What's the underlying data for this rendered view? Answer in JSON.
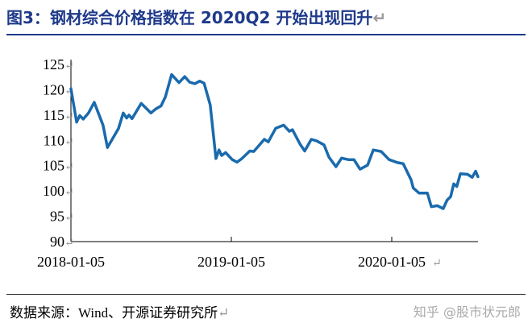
{
  "title": "图3：钢材综合价格指数在 2020Q2 开始出现回升",
  "return_mark": "↵",
  "source": "数据来源：Wind、开源证券研究所",
  "watermark": "知乎 @股市状元郎",
  "colors": {
    "line": "#1a6aad",
    "title": "#1f3a8a",
    "axis": "#000000"
  },
  "chart_data": {
    "type": "line",
    "title": "",
    "xlabel": "",
    "ylabel": "",
    "ylim": [
      90,
      125
    ],
    "yticks": [
      90,
      95,
      100,
      105,
      110,
      115,
      120,
      125
    ],
    "xticks": [
      "2018-01-05",
      "2019-01-05",
      "2020-01-05"
    ],
    "xlim": [
      "2018-01-05",
      "2020-07-19"
    ],
    "grid": false,
    "legend": "none",
    "series": [
      {
        "points": [
          [
            "2018-01-05",
            120.2
          ],
          [
            "2018-01-18",
            113.6
          ],
          [
            "2018-01-25",
            114.9
          ],
          [
            "2018-02-02",
            114.2
          ],
          [
            "2018-02-14",
            115.4
          ],
          [
            "2018-02-27",
            117.5
          ],
          [
            "2018-03-19",
            113.0
          ],
          [
            "2018-03-29",
            108.6
          ],
          [
            "2018-04-23",
            112.3
          ],
          [
            "2018-05-04",
            115.4
          ],
          [
            "2018-05-12",
            114.4
          ],
          [
            "2018-05-17",
            115.0
          ],
          [
            "2018-05-24",
            114.3
          ],
          [
            "2018-06-14",
            117.3
          ],
          [
            "2018-07-06",
            115.4
          ],
          [
            "2018-07-17",
            116.2
          ],
          [
            "2018-07-29",
            116.8
          ],
          [
            "2018-08-08",
            118.6
          ],
          [
            "2018-08-22",
            123.0
          ],
          [
            "2018-09-08",
            121.4
          ],
          [
            "2018-09-21",
            122.6
          ],
          [
            "2018-10-02",
            121.5
          ],
          [
            "2018-10-14",
            121.2
          ],
          [
            "2018-10-25",
            121.7
          ],
          [
            "2018-11-04",
            121.3
          ],
          [
            "2018-11-18",
            117.0
          ],
          [
            "2018-12-01",
            106.4
          ],
          [
            "2018-12-08",
            108.1
          ],
          [
            "2018-12-14",
            107.0
          ],
          [
            "2018-12-23",
            107.6
          ],
          [
            "2019-01-07",
            106.2
          ],
          [
            "2019-01-18",
            105.7
          ],
          [
            "2019-01-29",
            106.4
          ],
          [
            "2019-02-16",
            107.9
          ],
          [
            "2019-02-25",
            107.8
          ],
          [
            "2019-03-21",
            110.2
          ],
          [
            "2019-03-30",
            109.7
          ],
          [
            "2019-04-16",
            112.4
          ],
          [
            "2019-05-04",
            113.0
          ],
          [
            "2019-05-17",
            111.8
          ],
          [
            "2019-05-24",
            112.1
          ],
          [
            "2019-06-10",
            109.3
          ],
          [
            "2019-06-21",
            107.9
          ],
          [
            "2019-07-06",
            110.2
          ],
          [
            "2019-07-18",
            109.9
          ],
          [
            "2019-08-04",
            109.1
          ],
          [
            "2019-08-15",
            106.7
          ],
          [
            "2019-08-31",
            104.8
          ],
          [
            "2019-09-13",
            106.5
          ],
          [
            "2019-09-28",
            106.2
          ],
          [
            "2019-10-11",
            106.2
          ],
          [
            "2019-10-25",
            104.3
          ],
          [
            "2019-11-11",
            105.1
          ],
          [
            "2019-11-24",
            108.1
          ],
          [
            "2019-12-12",
            107.8
          ],
          [
            "2019-12-30",
            106.2
          ],
          [
            "2020-01-18",
            105.6
          ],
          [
            "2020-01-31",
            105.4
          ],
          [
            "2020-02-18",
            102.2
          ],
          [
            "2020-02-23",
            100.6
          ],
          [
            "2020-03-07",
            99.6
          ],
          [
            "2020-03-26",
            99.6
          ],
          [
            "2020-04-04",
            96.9
          ],
          [
            "2020-04-18",
            97.1
          ],
          [
            "2020-05-01",
            96.5
          ],
          [
            "2020-05-10",
            98.2
          ],
          [
            "2020-05-18",
            98.9
          ],
          [
            "2020-05-25",
            101.4
          ],
          [
            "2020-06-01",
            100.9
          ],
          [
            "2020-06-09",
            103.4
          ],
          [
            "2020-06-25",
            103.3
          ],
          [
            "2020-07-06",
            102.7
          ],
          [
            "2020-07-14",
            103.9
          ],
          [
            "2020-07-19",
            102.8
          ]
        ]
      }
    ]
  }
}
